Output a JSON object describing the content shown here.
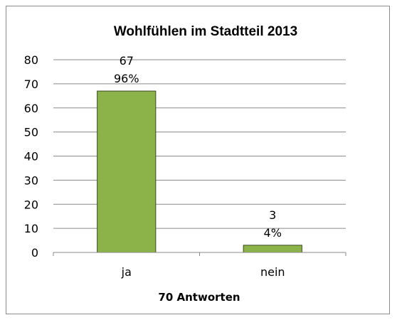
{
  "chart_data": {
    "type": "bar",
    "title": "Wohlfühlen im Stadtteil 2013",
    "xlabel": "70 Antworten",
    "ylabel": "",
    "categories": [
      "ja",
      "nein"
    ],
    "values": [
      67,
      3
    ],
    "value_labels": [
      "67",
      "3"
    ],
    "percent_labels": [
      "96%",
      "4%"
    ],
    "ylim": [
      0,
      80
    ],
    "yticks": [
      0,
      10,
      20,
      30,
      40,
      50,
      60,
      70,
      80
    ],
    "grid": true,
    "legend": "none",
    "bar_color": "#8bb34a",
    "bar_border_color": "#3a4a1e"
  }
}
